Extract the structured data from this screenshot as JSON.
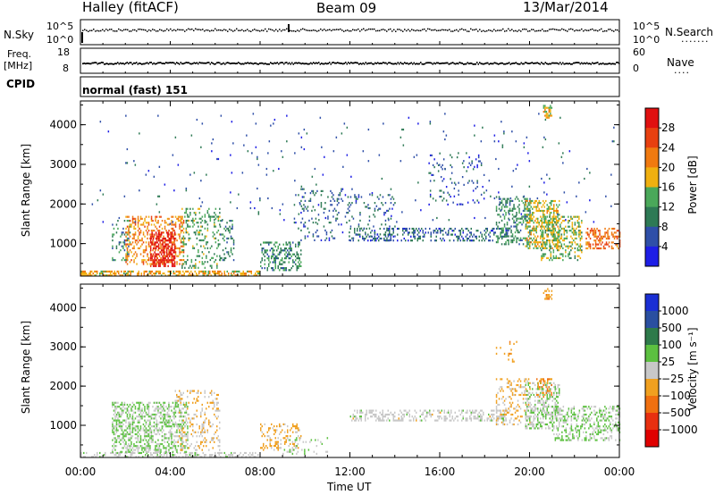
{
  "header": {
    "station": "Halley (fitACF)",
    "beam": "Beam 09",
    "date": "13/Mar/2014"
  },
  "sidepanel": {
    "nsky": "N.Sky",
    "freq_top": "Freq.",
    "freq_unit": "[MHz]",
    "cpid": "CPID",
    "nsearch": "N.Search",
    "nave": "Nave",
    "left_ticks_noise": [
      "10^5",
      "10^0"
    ],
    "right_ticks_noise": [
      "10^5",
      "10^0"
    ],
    "left_ticks_freq": [
      "18",
      "8"
    ],
    "right_ticks_freq": [
      "60",
      "0"
    ],
    "cpid_text": "normal (fast) 151"
  },
  "colors": {
    "power_scale": [
      "#1e1ee6",
      "#2f4fa8",
      "#2e7a55",
      "#4aa85a",
      "#f0b010",
      "#f07a10",
      "#e84010",
      "#e01010"
    ],
    "velocity_scale": [
      "#1a2fd4",
      "#2a4fa0",
      "#2e7a4a",
      "#5cc040",
      "#c8c8c8",
      "#f0a020",
      "#f07010",
      "#e83010",
      "#e00000"
    ]
  },
  "chart_data": [
    {
      "type": "heatmap",
      "title": "",
      "xlabel": "Time UT",
      "ylabel": "Slant Range [km]",
      "x_ticks": [
        "00:00",
        "04:00",
        "08:00",
        "12:00",
        "16:00",
        "20:00",
        "00:00"
      ],
      "y_ticks": [
        "1000",
        "2000",
        "3000",
        "4000"
      ],
      "ylim": [
        180,
        4600
      ],
      "xlim_hours": [
        0,
        24
      ],
      "colorbar_label": "Power [dB]",
      "colorbar_ticks": [
        "4",
        "8",
        "12",
        "16",
        "20",
        "24",
        "28"
      ],
      "zlim": [
        0,
        30
      ],
      "patches": [
        {
          "t": [
            0.0,
            8.0
          ],
          "r": [
            180,
            320
          ],
          "v": 18,
          "density": 0.55
        },
        {
          "t": [
            1.4,
            2.2
          ],
          "r": [
            600,
            1600
          ],
          "v": 10,
          "density": 0.2
        },
        {
          "t": [
            2.0,
            4.6
          ],
          "r": [
            500,
            1700
          ],
          "v": 20,
          "density": 0.35
        },
        {
          "t": [
            3.1,
            4.2
          ],
          "r": [
            450,
            1300
          ],
          "v": 28,
          "density": 0.55
        },
        {
          "t": [
            4.5,
            6.2
          ],
          "r": [
            400,
            1900
          ],
          "v": 12,
          "density": 0.2
        },
        {
          "t": [
            6.2,
            6.8
          ],
          "r": [
            600,
            1600
          ],
          "v": 9,
          "density": 0.25
        },
        {
          "t": [
            8.0,
            9.8
          ],
          "r": [
            350,
            1050
          ],
          "v": 10,
          "density": 0.35
        },
        {
          "t": [
            9.5,
            14.0
          ],
          "r": [
            1100,
            2400
          ],
          "v": 7,
          "density": 0.12
        },
        {
          "t": [
            12.0,
            19.0
          ],
          "r": [
            1100,
            1400
          ],
          "v": 7,
          "density": 0.3
        },
        {
          "t": [
            15.5,
            18.0
          ],
          "r": [
            2000,
            3300
          ],
          "v": 6,
          "density": 0.08
        },
        {
          "t": [
            18.5,
            20.0
          ],
          "r": [
            1000,
            2200
          ],
          "v": 10,
          "density": 0.3
        },
        {
          "t": [
            19.8,
            21.3
          ],
          "r": [
            900,
            2100
          ],
          "v": 16,
          "density": 0.45
        },
        {
          "t": [
            20.5,
            22.3
          ],
          "r": [
            600,
            1700
          ],
          "v": 14,
          "density": 0.4
        },
        {
          "t": [
            22.5,
            24.0
          ],
          "r": [
            900,
            1400
          ],
          "v": 22,
          "density": 0.45
        },
        {
          "t": [
            20.6,
            21.0
          ],
          "r": [
            4200,
            4500
          ],
          "v": 16,
          "density": 0.5
        },
        {
          "t": [
            0.5,
            24.0
          ],
          "r": [
            1500,
            4300
          ],
          "v": 6,
          "density": 0.012
        }
      ]
    },
    {
      "type": "heatmap",
      "title": "",
      "xlabel": "Time UT",
      "ylabel": "Slant Range [km]",
      "x_ticks": [
        "00:00",
        "04:00",
        "08:00",
        "12:00",
        "16:00",
        "20:00",
        "00:00"
      ],
      "y_ticks": [
        "1000",
        "2000",
        "3000",
        "4000"
      ],
      "ylim": [
        180,
        4600
      ],
      "xlim_hours": [
        0,
        24
      ],
      "colorbar_label": "Velocity [m s⁻¹]",
      "colorbar_ticks": [
        "1000",
        "500",
        "100",
        "25",
        "−25",
        "−100",
        "−500",
        "−1000"
      ],
      "zlim": [
        -1200,
        1200
      ],
      "patches": [
        {
          "t": [
            0.0,
            8.0
          ],
          "r": [
            180,
            320
          ],
          "v": 40,
          "density": 0.4
        },
        {
          "t": [
            1.4,
            4.8
          ],
          "r": [
            300,
            1600
          ],
          "v": 150,
          "density": 0.45
        },
        {
          "t": [
            4.2,
            6.2
          ],
          "r": [
            350,
            1900
          ],
          "v": -120,
          "density": 0.2
        },
        {
          "t": [
            8.0,
            9.8
          ],
          "r": [
            350,
            1050
          ],
          "v": -200,
          "density": 0.25
        },
        {
          "t": [
            9.0,
            11.0
          ],
          "r": [
            250,
            700
          ],
          "v": 80,
          "density": 0.15
        },
        {
          "t": [
            12.0,
            19.0
          ],
          "r": [
            1100,
            1400
          ],
          "v": 10,
          "density": 0.35
        },
        {
          "t": [
            18.5,
            20.0
          ],
          "r": [
            1000,
            2200
          ],
          "v": -150,
          "density": 0.25
        },
        {
          "t": [
            19.8,
            21.3
          ],
          "r": [
            900,
            2100
          ],
          "v": 120,
          "density": 0.45
        },
        {
          "t": [
            20.3,
            21.0
          ],
          "r": [
            1700,
            2200
          ],
          "v": -400,
          "density": 0.35
        },
        {
          "t": [
            21.0,
            24.0
          ],
          "r": [
            600,
            1500
          ],
          "v": 150,
          "density": 0.35
        },
        {
          "t": [
            20.6,
            21.0
          ],
          "r": [
            4200,
            4500
          ],
          "v": -300,
          "density": 0.5
        },
        {
          "t": [
            18.5,
            19.5
          ],
          "r": [
            2600,
            3200
          ],
          "v": -300,
          "density": 0.08
        }
      ]
    }
  ]
}
